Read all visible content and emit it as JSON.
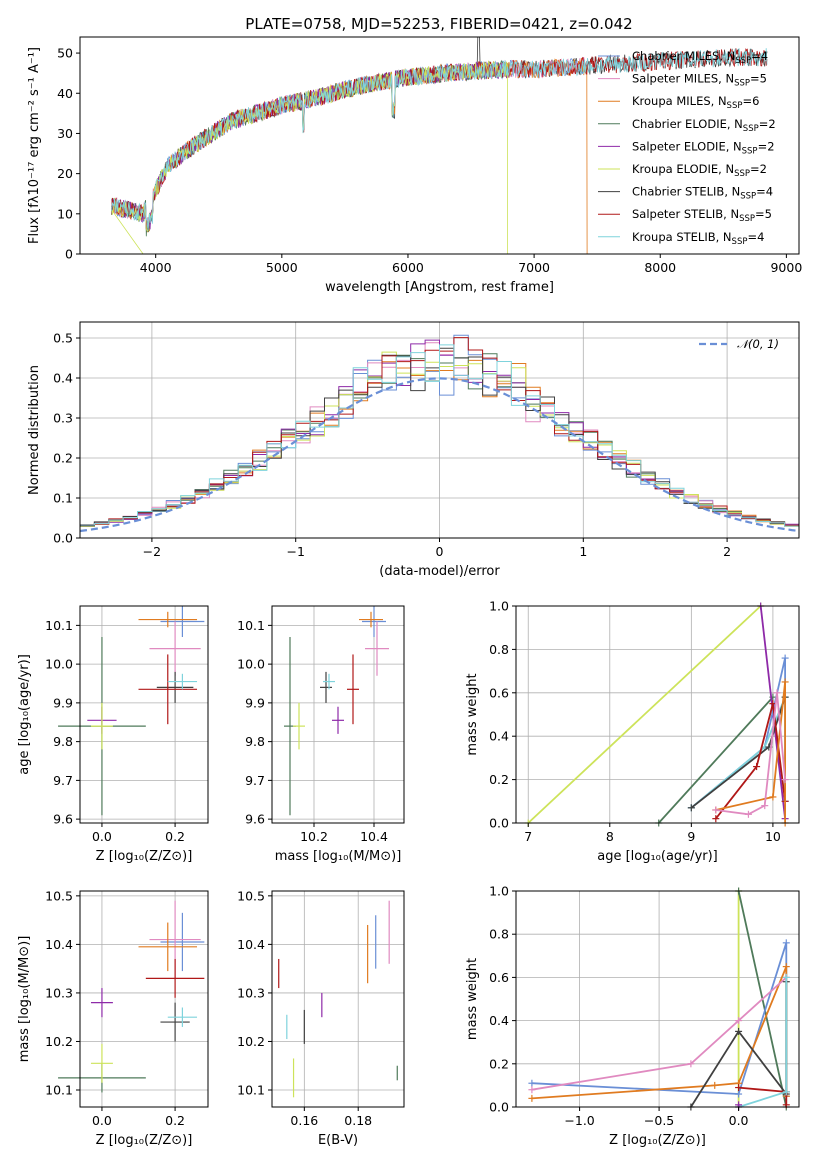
{
  "page": {
    "title": "PLATE=0758, MJD=52253, FIBERID=0421, z=0.042"
  },
  "colors": {
    "Chabrier MILES": "#6a8fd6",
    "Salpeter MILES": "#e08ac0",
    "Kroupa MILES": "#e07b20",
    "Chabrier ELODIE": "#4f7a5a",
    "Salpeter ELODIE": "#8e2aa8",
    "Kroupa ELODIE": "#cde35a",
    "Chabrier STELIB": "#404040",
    "Salpeter STELIB": "#b01818",
    "Kroupa STELIB": "#7fd3dc",
    "gauss": "#6a8fd6"
  },
  "chart_data": [
    {
      "id": "spectrum",
      "type": "line",
      "title": "PLATE=0758, MJD=52253, FIBERID=0421, z=0.042",
      "xlabel": "wavelength [Angstrom, rest frame]",
      "ylabel": "Flux [fλ10⁻¹⁷ erg cm⁻² s⁻¹ A⁻¹]",
      "xlim": [
        3400,
        9100
      ],
      "ylim": [
        0,
        54
      ],
      "xticks": [
        4000,
        5000,
        6000,
        7000,
        8000,
        9000
      ],
      "yticks": [
        0,
        10,
        20,
        30,
        40,
        50
      ],
      "grid": false,
      "legend": "top-right",
      "trend": {
        "x": [
          3650,
          3900,
          4100,
          4300,
          4600,
          5000,
          5300,
          5500,
          5800,
          6000,
          6300,
          6500,
          6800,
          7000,
          7300,
          7500,
          7800,
          8000,
          8300,
          8600,
          8800
        ],
        "y": [
          12,
          10,
          22,
          27,
          33,
          37,
          39,
          41,
          43,
          44,
          45,
          45.5,
          46,
          46,
          46.5,
          47,
          47.5,
          48,
          48.5,
          49,
          49
        ]
      },
      "series": [
        {
          "name": "Chabrier MILES, N_SSP=4",
          "xmax": 7400,
          "dropAt": null
        },
        {
          "name": "Salpeter MILES, N_SSP=5",
          "xmax": 7400,
          "dropAt": null
        },
        {
          "name": "Kroupa MILES, N_SSP=6",
          "xmax": 7420,
          "dropAt": 7420
        },
        {
          "name": "Chabrier ELODIE, N_SSP=2",
          "xmax": 6790,
          "dropAt": null
        },
        {
          "name": "Salpeter ELODIE, N_SSP=2",
          "xmax": 6790,
          "dropAt": null
        },
        {
          "name": "Kroupa ELODIE, N_SSP=2",
          "xmax": 6790,
          "dropAt": 6790,
          "dropStart": 3900
        },
        {
          "name": "Chabrier STELIB, N_SSP=4",
          "xmax": 8850,
          "dropAt": null
        },
        {
          "name": "Salpeter STELIB, N_SSP=5",
          "xmax": 8850,
          "dropAt": null
        },
        {
          "name": "Kroupa STELIB, N_SSP=4",
          "xmax": 8850,
          "dropAt": null
        }
      ]
    },
    {
      "id": "residuals",
      "type": "line",
      "xlabel": "(data-model)/error",
      "ylabel": "Normed distribution",
      "xlim": [
        -2.5,
        2.5
      ],
      "ylim": [
        0,
        0.54
      ],
      "xticks": [
        -2,
        -1,
        0,
        1,
        2
      ],
      "yticks": [
        0.0,
        0.1,
        0.2,
        0.3,
        0.4,
        0.5
      ],
      "grid": true,
      "legend": "top-right",
      "gauss_label": "𝒩(0, 1)",
      "bin_width": 0.1,
      "bin_edges_start": -2.5
    },
    {
      "id": "z_age",
      "type": "scatter",
      "xlabel": "Z [log₁₀(Z/Z⊙)]",
      "ylabel": "age  [log₁₀(age/yr)]",
      "xlim": [
        -0.06,
        0.29
      ],
      "ylim": [
        9.59,
        10.15
      ],
      "xticks": [
        0.0,
        0.2
      ],
      "yticks": [
        9.6,
        9.7,
        9.8,
        9.9,
        10.0,
        10.1
      ],
      "grid": true,
      "points": [
        {
          "series": "Chabrier MILES",
          "x": 0.22,
          "y": 10.11,
          "xe": 0.06,
          "ye": 0.04
        },
        {
          "series": "Salpeter MILES",
          "x": 0.2,
          "y": 10.04,
          "xe": 0.07,
          "ye": 0.07
        },
        {
          "series": "Kroupa MILES",
          "x": 0.18,
          "y": 10.115,
          "xe": 0.08,
          "ye": 0.02
        },
        {
          "series": "Chabrier ELODIE",
          "x": 0.0,
          "y": 9.84,
          "xe": 0.12,
          "ye": 0.23
        },
        {
          "series": "Salpeter ELODIE",
          "x": 0.0,
          "y": 9.855,
          "xe": 0.04,
          "ye": 0.035
        },
        {
          "series": "Kroupa ELODIE",
          "x": 0.0,
          "y": 9.84,
          "xe": 0.03,
          "ye": 0.06
        },
        {
          "series": "Chabrier STELIB",
          "x": 0.2,
          "y": 9.94,
          "xe": 0.05,
          "ye": 0.04
        },
        {
          "series": "Salpeter STELIB",
          "x": 0.18,
          "y": 9.935,
          "xe": 0.08,
          "ye": 0.09
        },
        {
          "series": "Kroupa STELIB",
          "x": 0.22,
          "y": 9.955,
          "xe": 0.04,
          "ye": 0.02
        }
      ]
    },
    {
      "id": "mass_age",
      "type": "scatter",
      "xlabel": "mass [log₁₀(M/M⊙)]",
      "ylabel": "",
      "xlim": [
        10.06,
        10.5
      ],
      "ylim": [
        9.59,
        10.15
      ],
      "xticks": [
        10.2,
        10.4
      ],
      "yticks": [
        9.6,
        9.7,
        9.8,
        9.9,
        10.0,
        10.1
      ],
      "grid": true,
      "points": [
        {
          "series": "Chabrier MILES",
          "x": 10.4,
          "y": 10.11,
          "xe": 0.04,
          "ye": 0.04
        },
        {
          "series": "Salpeter MILES",
          "x": 10.41,
          "y": 10.04,
          "xe": 0.04,
          "ye": 0.07
        },
        {
          "series": "Kroupa MILES",
          "x": 10.39,
          "y": 10.115,
          "xe": 0.04,
          "ye": 0.02
        },
        {
          "series": "Chabrier ELODIE",
          "x": 10.12,
          "y": 9.84,
          "xe": 0.02,
          "ye": 0.23
        },
        {
          "series": "Salpeter ELODIE",
          "x": 10.28,
          "y": 9.855,
          "xe": 0.02,
          "ye": 0.035
        },
        {
          "series": "Kroupa ELODIE",
          "x": 10.15,
          "y": 9.84,
          "xe": 0.02,
          "ye": 0.06
        },
        {
          "series": "Chabrier STELIB",
          "x": 10.24,
          "y": 9.94,
          "xe": 0.02,
          "ye": 0.04
        },
        {
          "series": "Salpeter STELIB",
          "x": 10.33,
          "y": 9.935,
          "xe": 0.02,
          "ye": 0.09
        },
        {
          "series": "Kroupa STELIB",
          "x": 10.25,
          "y": 9.955,
          "xe": 0.02,
          "ye": 0.02
        }
      ]
    },
    {
      "id": "age_weight",
      "type": "line",
      "xlabel": "age  [log₁₀(age/yr)]",
      "ylabel": "mass weight",
      "xlim": [
        6.85,
        10.32
      ],
      "ylim": [
        0,
        1.0
      ],
      "xticks": [
        7,
        8,
        9,
        10
      ],
      "yticks": [
        0.0,
        0.2,
        0.4,
        0.6,
        0.8,
        1.0
      ],
      "grid": true,
      "series": [
        {
          "name": "Kroupa ELODIE",
          "x": [
            7.0,
            9.85
          ],
          "y": [
            0.0,
            1.0
          ]
        },
        {
          "name": "Chabrier ELODIE",
          "x": [
            8.6,
            10.0
          ],
          "y": [
            0.0,
            0.58
          ]
        },
        {
          "name": "Salpeter ELODIE",
          "x": [
            9.85,
            10.15
          ],
          "y": [
            1.0,
            0.02
          ]
        },
        {
          "name": "Chabrier MILES",
          "x": [
            9.0,
            9.9,
            10.15,
            10.15
          ],
          "y": [
            0.07,
            0.35,
            0.76,
            0.1
          ]
        },
        {
          "name": "Kroupa STELIB",
          "x": [
            9.0,
            9.9,
            10.15,
            10.15
          ],
          "y": [
            0.07,
            0.35,
            0.58,
            0.1
          ]
        },
        {
          "name": "Chabrier STELIB",
          "x": [
            9.0,
            9.95,
            10.15
          ],
          "y": [
            0.07,
            0.35,
            0.58
          ]
        },
        {
          "name": "Salpeter STELIB",
          "x": [
            9.3,
            9.8,
            10.0,
            10.15
          ],
          "y": [
            0.02,
            0.26,
            0.55,
            0.1
          ]
        },
        {
          "name": "Kroupa MILES",
          "x": [
            9.3,
            10.0,
            10.15,
            10.15
          ],
          "y": [
            0.06,
            0.12,
            0.65,
            0.0
          ]
        },
        {
          "name": "Salpeter MILES",
          "x": [
            9.3,
            9.7,
            9.9,
            10.05,
            10.15
          ],
          "y": [
            0.06,
            0.04,
            0.08,
            0.6,
            0.2
          ]
        }
      ]
    },
    {
      "id": "z_mass",
      "type": "scatter",
      "xlabel": "Z [log₁₀(Z/Z⊙)]",
      "ylabel": "mass [log₁₀(M/M⊙)]",
      "xlim": [
        -0.06,
        0.29
      ],
      "ylim": [
        10.065,
        10.51
      ],
      "xticks": [
        0.0,
        0.2
      ],
      "yticks": [
        10.1,
        10.2,
        10.3,
        10.4,
        10.5
      ],
      "grid": true,
      "points": [
        {
          "series": "Chabrier MILES",
          "x": 0.22,
          "y": 10.405,
          "xe": 0.06,
          "ye": 0.06
        },
        {
          "series": "Salpeter MILES",
          "x": 0.2,
          "y": 10.41,
          "xe": 0.07,
          "ye": 0.08
        },
        {
          "series": "Kroupa MILES",
          "x": 0.18,
          "y": 10.395,
          "xe": 0.08,
          "ye": 0.05
        },
        {
          "series": "Chabrier ELODIE",
          "x": 0.0,
          "y": 10.125,
          "xe": 0.12,
          "ye": 0.03
        },
        {
          "series": "Salpeter ELODIE",
          "x": 0.0,
          "y": 10.28,
          "xe": 0.03,
          "ye": 0.03
        },
        {
          "series": "Kroupa ELODIE",
          "x": 0.0,
          "y": 10.155,
          "xe": 0.03,
          "ye": 0.04
        },
        {
          "series": "Chabrier STELIB",
          "x": 0.2,
          "y": 10.24,
          "xe": 0.04,
          "ye": 0.04
        },
        {
          "series": "Salpeter STELIB",
          "x": 0.2,
          "y": 10.33,
          "xe": 0.08,
          "ye": 0.04
        },
        {
          "series": "Kroupa STELIB",
          "x": 0.22,
          "y": 10.25,
          "xe": 0.04,
          "ye": 0.02
        }
      ]
    },
    {
      "id": "ebv_mass",
      "type": "scatter",
      "xlabel": "E(B-V)",
      "ylabel": "",
      "xlim": [
        0.148,
        0.197
      ],
      "ylim": [
        10.065,
        10.51
      ],
      "xticks": [
        0.16,
        0.18
      ],
      "yticks": [
        10.1,
        10.2,
        10.3,
        10.4,
        10.5
      ],
      "grid": true,
      "points": [
        {
          "series": "Chabrier MILES",
          "x": 0.1865,
          "y": 10.405,
          "xe": 0,
          "ye": 0.055
        },
        {
          "series": "Salpeter MILES",
          "x": 0.1915,
          "y": 10.425,
          "xe": 0,
          "ye": 0.065
        },
        {
          "series": "Kroupa MILES",
          "x": 0.1835,
          "y": 10.38,
          "xe": 0,
          "ye": 0.06
        },
        {
          "series": "Chabrier ELODIE",
          "x": 0.1945,
          "y": 10.135,
          "xe": 0,
          "ye": 0.015
        },
        {
          "series": "Salpeter ELODIE",
          "x": 0.1665,
          "y": 10.275,
          "xe": 0,
          "ye": 0.025
        },
        {
          "series": "Kroupa ELODIE",
          "x": 0.156,
          "y": 10.125,
          "xe": 0,
          "ye": 0.04
        },
        {
          "series": "Chabrier STELIB",
          "x": 0.16,
          "y": 10.23,
          "xe": 0,
          "ye": 0.035
        },
        {
          "series": "Salpeter STELIB",
          "x": 0.1505,
          "y": 10.34,
          "xe": 0,
          "ye": 0.03
        },
        {
          "series": "Kroupa STELIB",
          "x": 0.1535,
          "y": 10.23,
          "xe": 0,
          "ye": 0.025
        }
      ]
    },
    {
      "id": "z_weight",
      "type": "line",
      "xlabel": "Z [log₁₀(Z/Z⊙)]",
      "ylabel": "mass weight",
      "xlim": [
        -1.4,
        0.38
      ],
      "ylim": [
        0,
        1.0
      ],
      "xticks": [
        -1.0,
        -0.5,
        0.0
      ],
      "yticks": [
        0.0,
        0.2,
        0.4,
        0.6,
        0.8,
        1.0
      ],
      "grid": true,
      "series": [
        {
          "name": "Kroupa ELODIE",
          "x": [
            0.0,
            0.0
          ],
          "y": [
            0.0,
            1.0
          ]
        },
        {
          "name": "Chabrier ELODIE",
          "x": [
            0.0,
            0.3
          ],
          "y": [
            1.0,
            0.0
          ]
        },
        {
          "name": "Chabrier MILES",
          "x": [
            -1.3,
            0.0,
            0.3,
            0.3
          ],
          "y": [
            0.11,
            0.06,
            0.76,
            0.05
          ]
        },
        {
          "name": "Kroupa MILES",
          "x": [
            -1.3,
            -0.15,
            0.0,
            0.3,
            0.3
          ],
          "y": [
            0.04,
            0.1,
            0.11,
            0.65,
            0.05
          ]
        },
        {
          "name": "Salpeter MILES",
          "x": [
            -1.3,
            -0.3,
            0.0,
            0.3
          ],
          "y": [
            0.08,
            0.2,
            0.4,
            0.6
          ]
        },
        {
          "name": "Chabrier STELIB",
          "x": [
            -0.3,
            0.0,
            0.3,
            0.3
          ],
          "y": [
            0.0,
            0.35,
            0.06,
            0.58
          ]
        },
        {
          "name": "Salpeter STELIB",
          "x": [
            0.0,
            0.3,
            0.3
          ],
          "y": [
            0.09,
            0.07,
            0.01
          ]
        },
        {
          "name": "Kroupa STELIB",
          "x": [
            0.0,
            0.3,
            0.3
          ],
          "y": [
            0.0,
            0.07,
            0.6
          ]
        },
        {
          "name": "Salpeter ELODIE",
          "x": [
            0.0,
            0.0
          ],
          "y": [
            0.0,
            0.01
          ]
        }
      ]
    }
  ]
}
